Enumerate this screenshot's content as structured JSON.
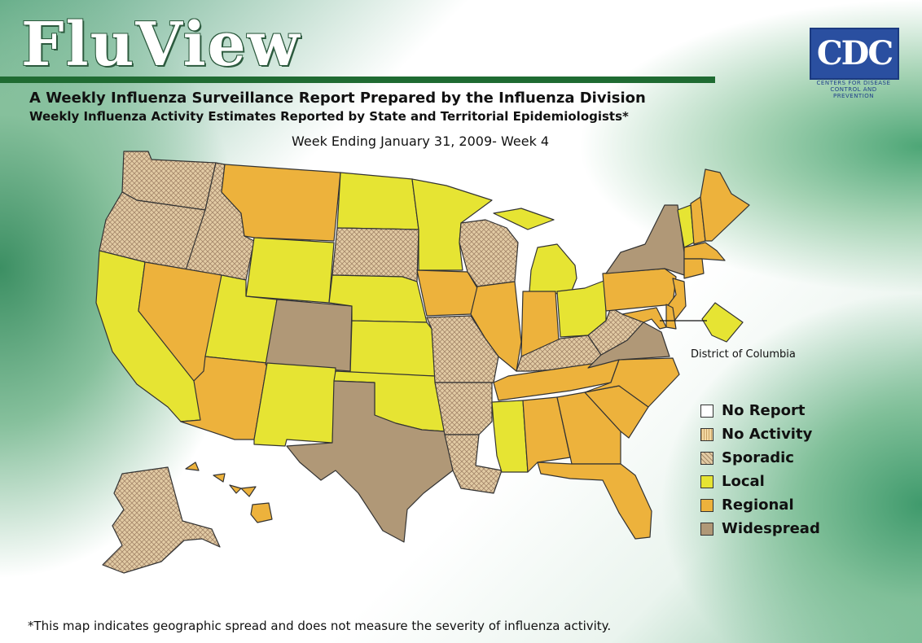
{
  "header": {
    "brand": "FluView",
    "subtitle": "A Weekly Influenza Surveillance Report Prepared by the Influenza Division",
    "subtitle2": "Weekly Influenza Activity Estimates Reported by State and Territorial Epidemiologists*",
    "week": "Week Ending January 31, 2009- Week 4"
  },
  "logo": {
    "text": "CDC",
    "tagline": "CENTERS FOR DISEASE CONTROL AND PREVENTION"
  },
  "colors": {
    "no_report": "#ffffff",
    "no_activity": "#f4d9a3",
    "sporadic": "#e2cba4",
    "local": "#e6e433",
    "regional": "#edb23c",
    "widespread": "#b09877"
  },
  "legend": [
    {
      "key": "no_report",
      "label": "No Report"
    },
    {
      "key": "no_activity",
      "label": "No Activity"
    },
    {
      "key": "sporadic",
      "label": "Sporadic"
    },
    {
      "key": "local",
      "label": "Local"
    },
    {
      "key": "regional",
      "label": "Regional"
    },
    {
      "key": "widespread",
      "label": "Widespread"
    }
  ],
  "states": {
    "WA": "sporadic",
    "OR": "sporadic",
    "CA": "local",
    "ID": "sporadic",
    "NV": "regional",
    "MT": "regional",
    "WY": "local",
    "UT": "local",
    "AZ": "regional",
    "CO": "widespread",
    "NM": "local",
    "ND": "local",
    "SD": "sporadic",
    "NE": "local",
    "KS": "local",
    "OK": "local",
    "TX": "widespread",
    "MN": "local",
    "IA": "regional",
    "MO": "sporadic",
    "AR": "sporadic",
    "LA": "sporadic",
    "WI": "sporadic",
    "IL": "regional",
    "MI": "local",
    "IN": "regional",
    "OH": "local",
    "KY": "sporadic",
    "TN": "regional",
    "MS": "local",
    "AL": "regional",
    "GA": "regional",
    "FL": "regional",
    "SC": "regional",
    "NC": "regional",
    "VA": "widespread",
    "WV": "sporadic",
    "PA": "regional",
    "NY": "widespread",
    "VT": "local",
    "NH": "regional",
    "ME": "regional",
    "MA": "regional",
    "CT": "regional",
    "NJ": "regional",
    "MD": "regional",
    "DE": "regional",
    "DC": "local",
    "AK": "sporadic",
    "HI": "regional"
  },
  "dc_label": "District of Columbia",
  "footnote": "*This map indicates geographic spread and does not measure the severity of influenza activity."
}
